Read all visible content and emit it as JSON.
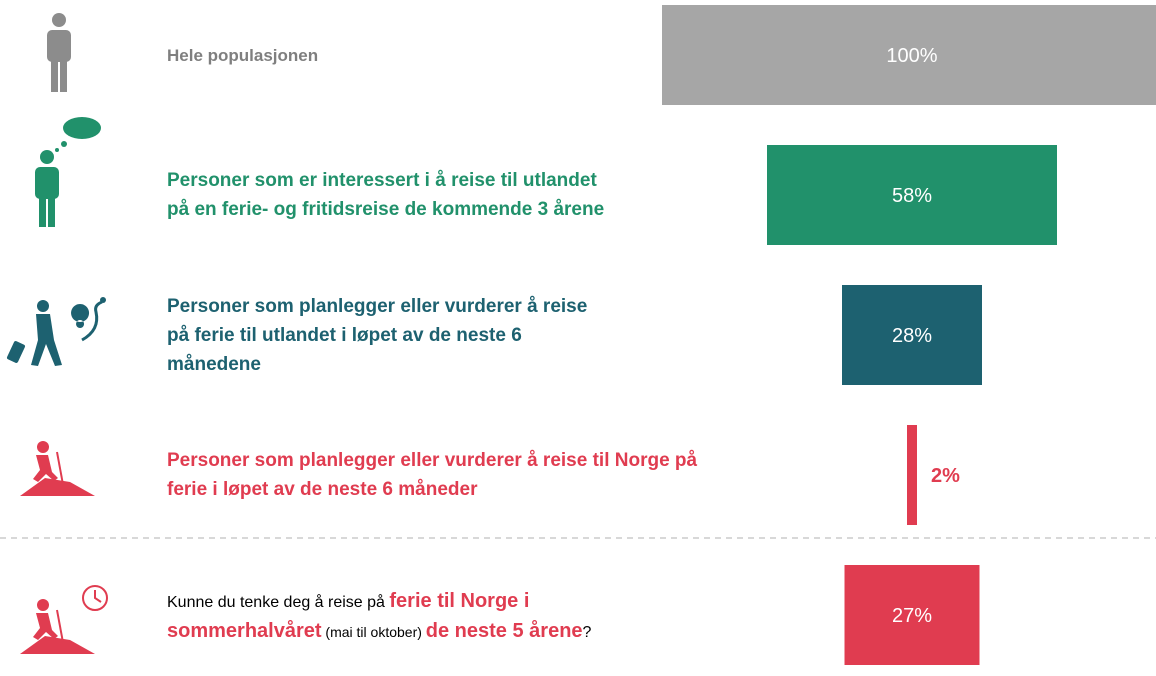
{
  "chart_data": {
    "type": "funnel",
    "categories": [
      "Hele populasjonen",
      "Personer som er interessert i å reise til utlandet på en ferie- og fritidsreise de kommende 3 årene",
      "Personer som planlegger eller vurderer å reise på ferie til utlandet i løpet av de neste 6 månedene",
      "Personer som planlegger eller vurderer å reise til Norge på ferie i løpet av de neste 6 måneder",
      [
        {
          "text": "Kunne du tenke deg å reise på ",
          "style": "normal"
        },
        {
          "text": "ferie til Norge i sommerhalvåret",
          "style": "strong"
        },
        {
          "text": " (mai til oktober) ",
          "style": "small"
        },
        {
          "text": " de neste 5 årene",
          "style": "strong"
        },
        {
          "text": "?",
          "style": "normal"
        }
      ]
    ],
    "values": [
      100,
      58,
      28,
      2,
      27
    ],
    "value_labels": [
      "100%",
      "58%",
      "28%",
      "2%",
      "27%"
    ],
    "colors": [
      "#a6a6a6",
      "#21916b",
      "#1d6170",
      "#e03c50",
      "#e03c50"
    ],
    "label_colors": [
      "#7f7f7f",
      "#21916b",
      "#1d6170",
      "#e03c50",
      "#e03c50"
    ],
    "xlim": [
      0,
      100
    ]
  }
}
